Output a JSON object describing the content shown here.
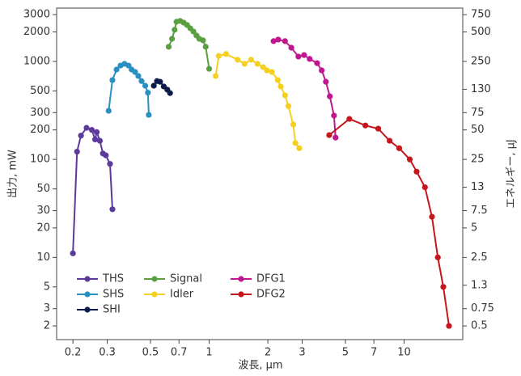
{
  "chart_data": {
    "type": "line",
    "xlabel": "波長, µm",
    "ylabel": "出力, mW",
    "y2label": "エネルギー, µJ",
    "xscale": "log",
    "yscale": "log",
    "xlim": [
      0.165,
      20
    ],
    "ylim": [
      1.45,
      3500
    ],
    "y2lim": [
      0.3625,
      875
    ],
    "xticks": [
      0.2,
      0.3,
      0.5,
      0.7,
      1,
      2,
      3,
      5,
      7,
      10
    ],
    "yticks": [
      2,
      3,
      5,
      10,
      20,
      30,
      50,
      100,
      200,
      300,
      500,
      1000,
      2000,
      3000
    ],
    "y2ticks": [
      0.5,
      0.75,
      1.3,
      2.5,
      5,
      7.5,
      13,
      25,
      50,
      75,
      130,
      250,
      500,
      750
    ],
    "series": [
      {
        "name": "THS",
        "color": "#5b3a9b",
        "x": [
          0.2,
          0.21,
          0.22,
          0.235,
          0.25,
          0.26,
          0.265,
          0.275,
          0.285,
          0.295,
          0.31,
          0.319
        ],
        "values": [
          11,
          120,
          175,
          210,
          200,
          160,
          190,
          155,
          115,
          110,
          90,
          31
        ]
      },
      {
        "name": "SHS",
        "color": "#2a8fc1",
        "x": [
          0.305,
          0.319,
          0.335,
          0.351,
          0.368,
          0.386,
          0.4,
          0.417,
          0.433,
          0.45,
          0.47,
          0.485,
          0.49
        ],
        "values": [
          313,
          645,
          826,
          907,
          945,
          907,
          826,
          780,
          710,
          630,
          565,
          480,
          285
        ]
      },
      {
        "name": "SHI",
        "color": "#0d1b4a",
        "x": [
          0.52,
          0.54,
          0.56,
          0.585,
          0.61,
          0.63
        ],
        "values": [
          565,
          630,
          620,
          555,
          515,
          475
        ]
      },
      {
        "name": "Signal",
        "color": "#5aa040",
        "x": [
          0.62,
          0.645,
          0.665,
          0.68,
          0.71,
          0.74,
          0.77,
          0.8,
          0.83,
          0.86,
          0.89,
          0.93,
          0.96,
          1.0
        ],
        "values": [
          1410,
          1700,
          2100,
          2540,
          2590,
          2490,
          2355,
          2180,
          2020,
          1840,
          1700,
          1640,
          1410,
          840
        ]
      },
      {
        "name": "Idler",
        "color": "#f5d020",
        "x": [
          1.08,
          1.12,
          1.22,
          1.4,
          1.52,
          1.64,
          1.77,
          1.89,
          1.98,
          2.1,
          2.25,
          2.33,
          2.45,
          2.55,
          2.7,
          2.77,
          2.9
        ],
        "values": [
          710,
          1140,
          1190,
          1040,
          945,
          1040,
          945,
          875,
          810,
          780,
          645,
          555,
          450,
          350,
          227,
          147,
          130
        ]
      },
      {
        "name": "DFG1",
        "color": "#c0178f",
        "x": [
          2.14,
          2.26,
          2.45,
          2.64,
          2.87,
          3.07,
          3.28,
          3.58,
          3.78,
          3.97,
          4.16,
          4.37,
          4.45
        ],
        "values": [
          1610,
          1670,
          1610,
          1380,
          1120,
          1160,
          1060,
          960,
          810,
          620,
          440,
          280,
          167
        ]
      },
      {
        "name": "DFG2",
        "color": "#c4161c",
        "x": [
          4.13,
          5.24,
          6.33,
          7.37,
          8.43,
          9.44,
          10.7,
          11.6,
          12.8,
          13.9,
          14.9,
          15.9,
          17.0
        ],
        "values": [
          177,
          259,
          222,
          206,
          155,
          130,
          100,
          75,
          52,
          26,
          10,
          5.0,
          2.0
        ]
      }
    ]
  }
}
